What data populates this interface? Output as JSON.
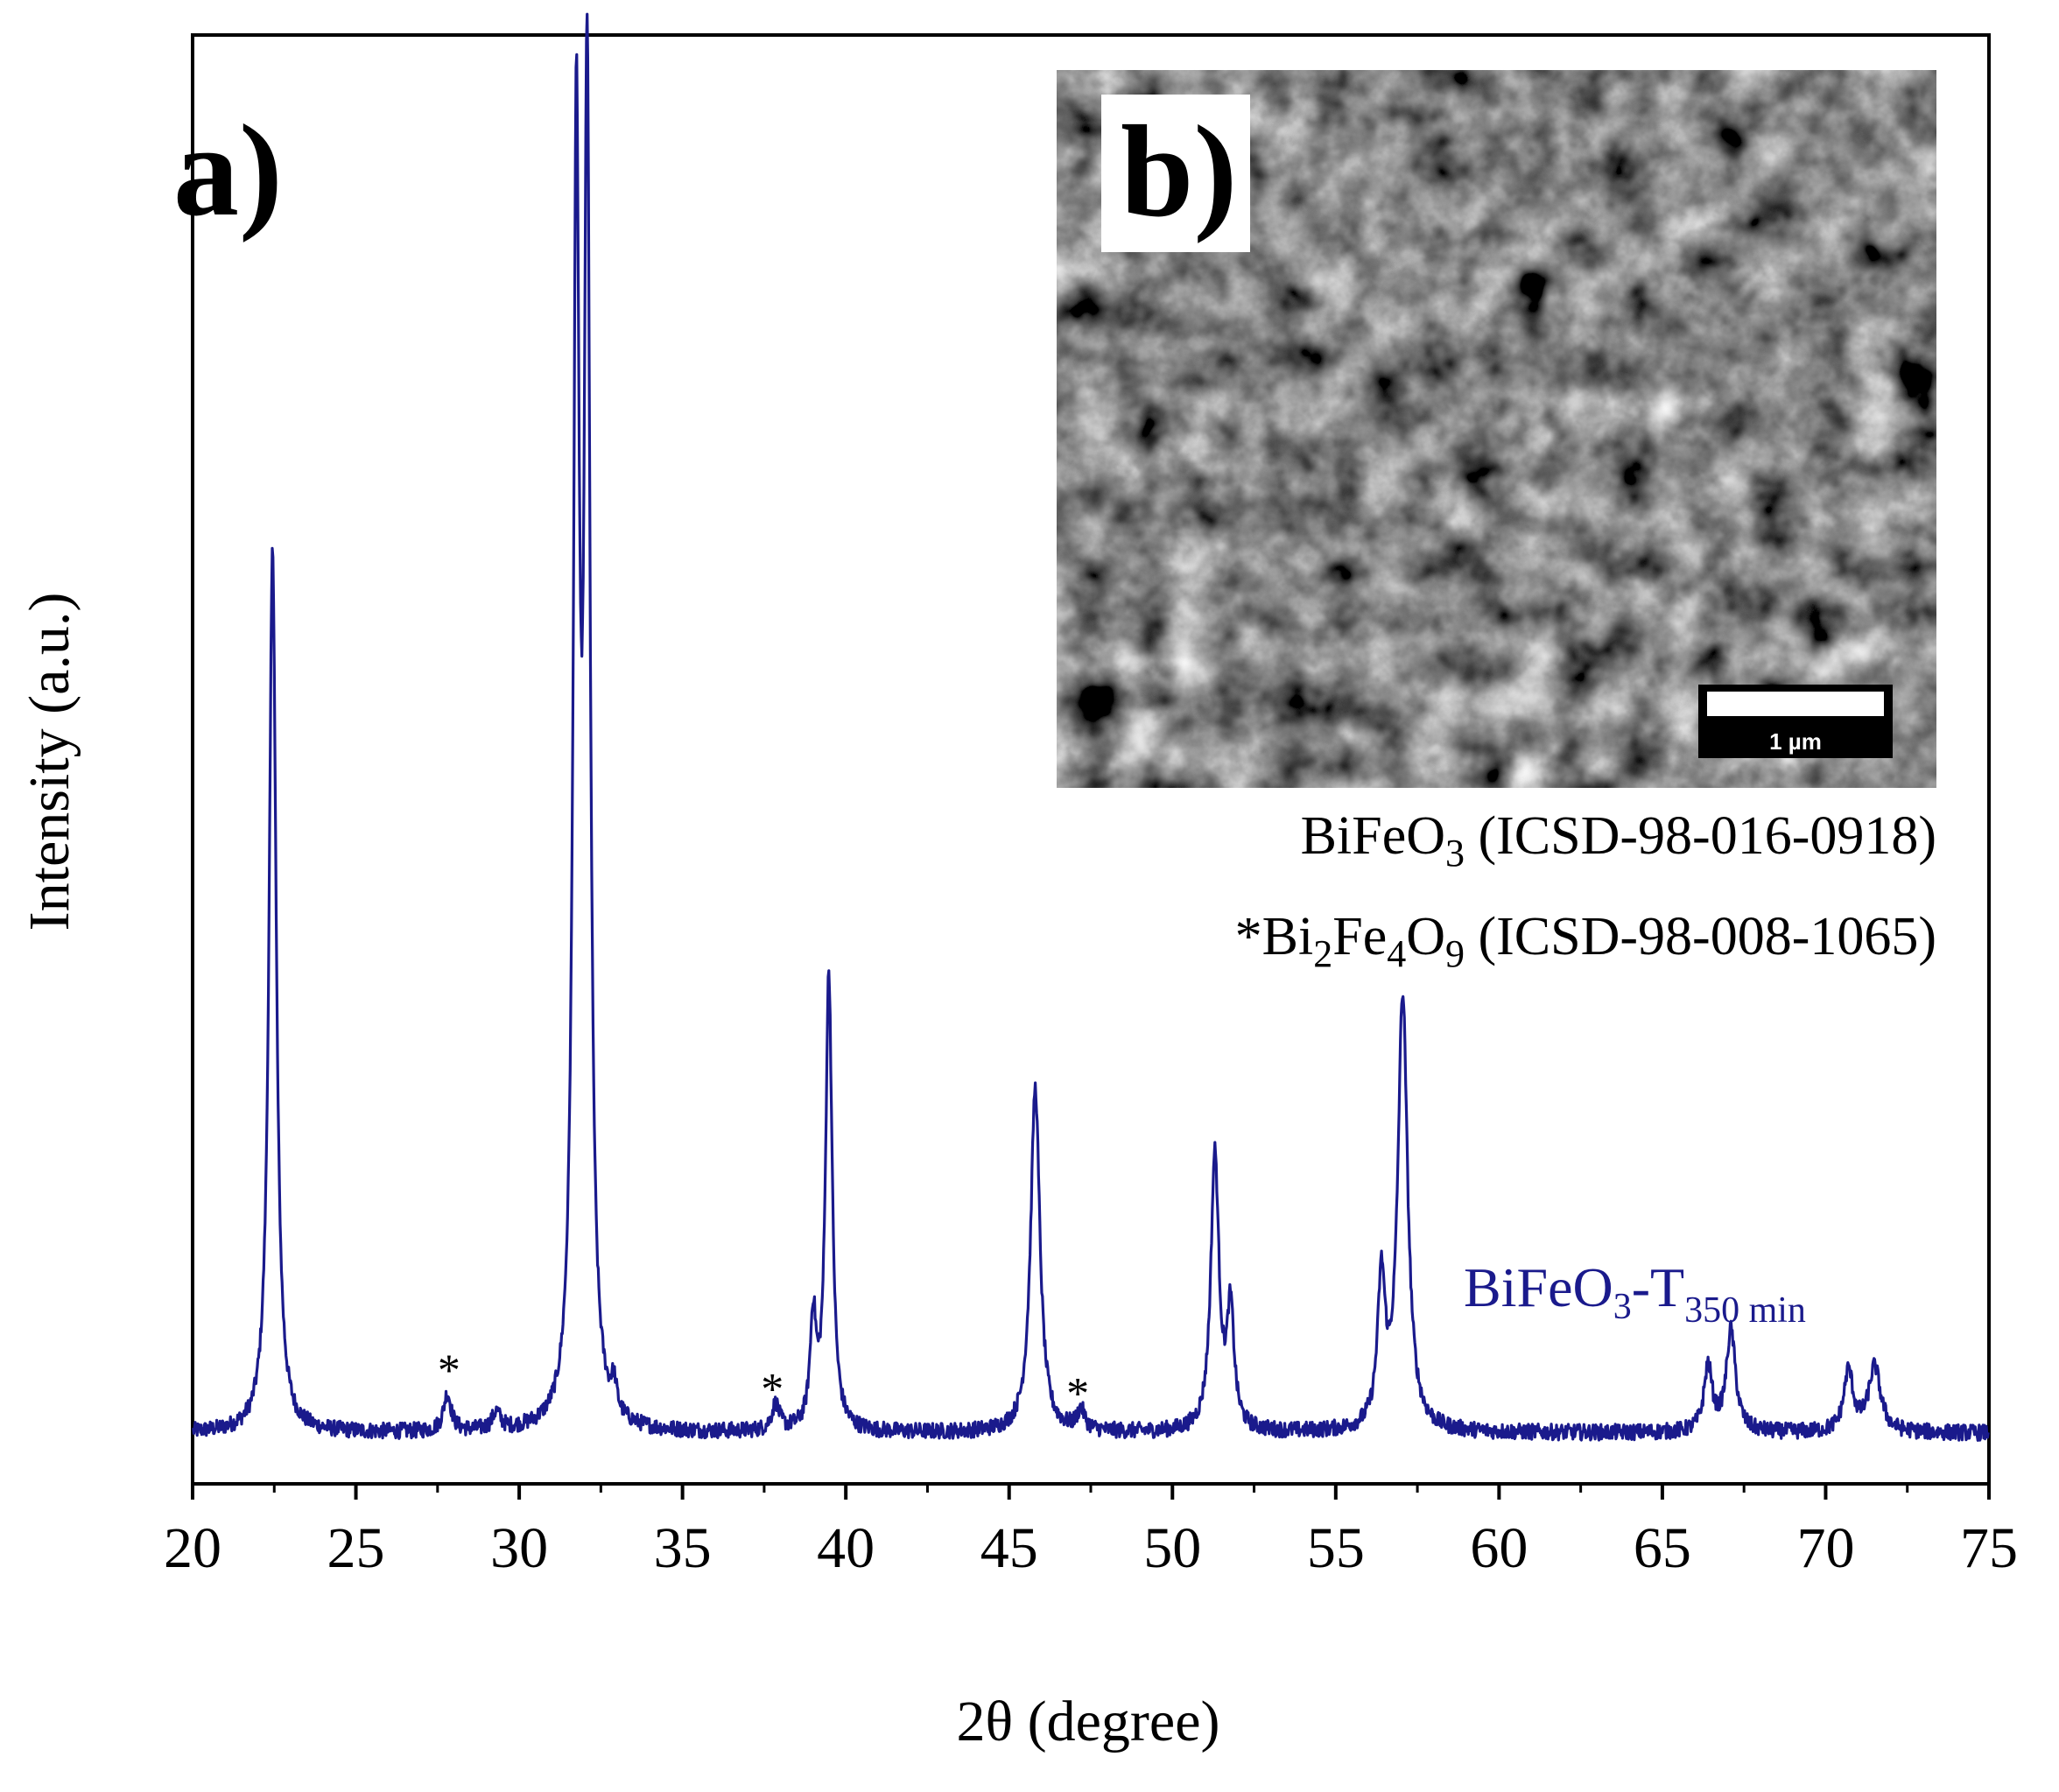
{
  "chart_data": {
    "type": "line",
    "panel_label": "a)",
    "xlabel": "2θ (degree)",
    "ylabel": "Intensity (a.u.)",
    "xlim": [
      20,
      75
    ],
    "ylim": [
      0,
      100
    ],
    "x_ticks": [
      "20",
      "25",
      "30",
      "35",
      "40",
      "45",
      "50",
      "55",
      "60",
      "65",
      "70",
      "75"
    ],
    "grid": false,
    "series": [
      {
        "name_main": "BiFeO",
        "name_sub1": "3",
        "name_mid": "-T",
        "name_sub2": "350 min",
        "color": "#1a1a8c",
        "baseline": 3.5,
        "peaks": [
          {
            "x": 22.45,
            "h": 61.0,
            "w": 0.13
          },
          {
            "x": 27.8,
            "h": 2.6,
            "w": 0.14
          },
          {
            "x": 29.3,
            "h": 1.2,
            "w": 0.15
          },
          {
            "x": 31.75,
            "h": 86.0,
            "w": 0.11
          },
          {
            "x": 32.08,
            "h": 89.5,
            "w": 0.11
          },
          {
            "x": 32.9,
            "h": 2.0,
            "w": 0.1
          },
          {
            "x": 37.85,
            "h": 1.8,
            "w": 0.14
          },
          {
            "x": 39.0,
            "h": 7.5,
            "w": 0.11
          },
          {
            "x": 39.48,
            "h": 31.5,
            "w": 0.12
          },
          {
            "x": 45.8,
            "h": 23.8,
            "w": 0.17
          },
          {
            "x": 47.2,
            "h": 1.4,
            "w": 0.14
          },
          {
            "x": 51.3,
            "h": 19.0,
            "w": 0.15
          },
          {
            "x": 51.78,
            "h": 8.0,
            "w": 0.13
          },
          {
            "x": 56.4,
            "h": 10.0,
            "w": 0.14
          },
          {
            "x": 57.05,
            "h": 30.0,
            "w": 0.18
          },
          {
            "x": 66.4,
            "h": 4.5,
            "w": 0.15
          },
          {
            "x": 67.1,
            "h": 7.0,
            "w": 0.17
          },
          {
            "x": 70.7,
            "h": 4.2,
            "w": 0.17
          },
          {
            "x": 71.5,
            "h": 4.5,
            "w": 0.22
          }
        ]
      }
    ],
    "impurity_markers": [
      {
        "symbol": "*",
        "x": 27.85,
        "y": 6.8
      },
      {
        "symbol": "*",
        "x": 37.75,
        "y": 5.5
      },
      {
        "symbol": "*",
        "x": 47.1,
        "y": 5.2
      }
    ],
    "legend_lines": [
      {
        "prefix": "",
        "parts": [
          "BiFeO",
          "3",
          " (ICSD-98-016-0918)"
        ]
      },
      {
        "prefix": "*",
        "parts": [
          "Bi",
          "2",
          "Fe",
          "4",
          "O",
          "9",
          " (ICSD-98-008-1065)"
        ]
      }
    ]
  },
  "inset": {
    "panel_label": "b)",
    "scale_bar_label": "1 µm"
  }
}
